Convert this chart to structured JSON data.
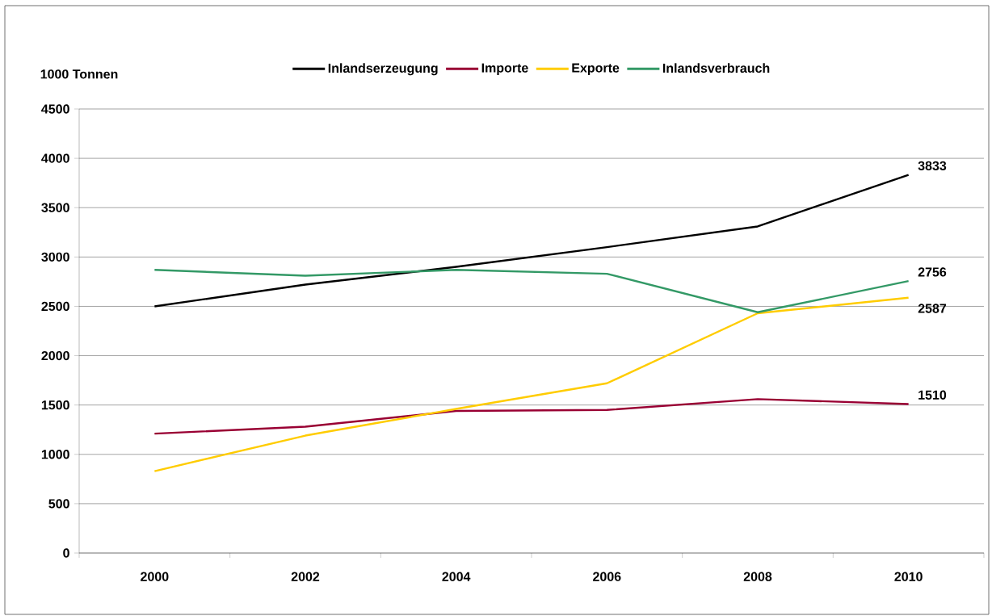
{
  "chart_data": {
    "type": "line",
    "ylabel": "1000 Tonnen",
    "categories": [
      "2000",
      "2002",
      "2004",
      "2006",
      "2008",
      "2010"
    ],
    "series": [
      {
        "name": "Inlandserzeugung",
        "color": "#000000",
        "values": [
          2500,
          2720,
          2900,
          3100,
          3310,
          3833
        ],
        "value_labels": [
          null,
          null,
          null,
          null,
          null,
          "3833"
        ]
      },
      {
        "name": "Importe",
        "color": "#990033",
        "values": [
          1210,
          1280,
          1440,
          1450,
          1560,
          1510
        ],
        "value_labels": [
          null,
          null,
          null,
          null,
          null,
          "1510"
        ]
      },
      {
        "name": "Exporte",
        "color": "#ffcc00",
        "values": [
          830,
          1190,
          1460,
          1720,
          2430,
          2587
        ],
        "value_labels": [
          null,
          null,
          null,
          null,
          null,
          "2587"
        ]
      },
      {
        "name": "Inlandsverbrauch",
        "color": "#339966",
        "values": [
          2870,
          2810,
          2870,
          2830,
          2440,
          2756
        ],
        "value_labels": [
          null,
          null,
          null,
          null,
          null,
          "2756"
        ]
      }
    ],
    "ylim": [
      0,
      4500
    ],
    "yticks": [
      0,
      500,
      1000,
      1500,
      2000,
      2500,
      3000,
      3500,
      4000,
      4500
    ],
    "grid": "y",
    "legend": "top",
    "marker": "none",
    "line_style": "solid"
  }
}
